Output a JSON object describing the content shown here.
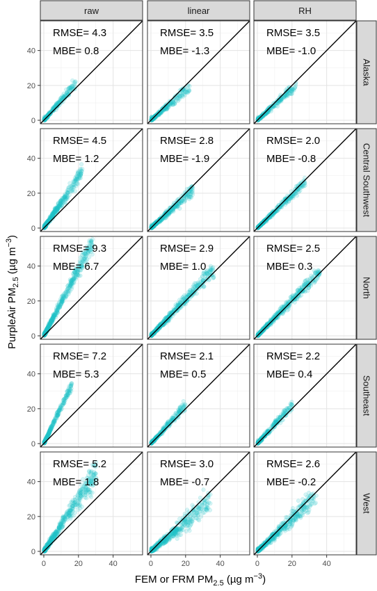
{
  "chart_data": {
    "type": "scatter",
    "panel_columns": [
      "raw",
      "linear",
      "RH"
    ],
    "panel_rows": [
      "Alaska",
      "Central Southwest",
      "North",
      "Southeast",
      "West"
    ],
    "xlabel": "FEM or FRM PM2.5 (µg m−3)",
    "ylabel": "PurpleAir PM2.5 (µg m−3)",
    "xlabel_parts": {
      "pre": "FEM or FRM PM",
      "sub": "2.5",
      "mid": " (µg m",
      "sup": "−3",
      "post": ")"
    },
    "ylabel_parts": {
      "pre": "PurpleAir PM",
      "sub": "2.5",
      "mid": " (µg m",
      "sup": "−3",
      "post": ")"
    },
    "xlim": [
      -2,
      57
    ],
    "ylim": [
      -2,
      57
    ],
    "x_ticks": [
      0,
      20,
      40
    ],
    "x_tick_labels": [
      "0",
      "20",
      "40"
    ],
    "y_ticks": [
      0,
      20,
      40
    ],
    "y_tick_labels": [
      "0",
      "20",
      "40"
    ],
    "grid": true,
    "reference_line": "1:1",
    "point_color": "#1fc3c8",
    "metrics": [
      {
        "row": "Alaska",
        "col": "raw",
        "rmse": "RMSE= 4.3",
        "mbe": "MBE= 0.8",
        "slope": 1.15,
        "xmax": 18,
        "spread": 0.3
      },
      {
        "row": "Alaska",
        "col": "linear",
        "rmse": "RMSE= 3.5",
        "mbe": "MBE= -1.3",
        "slope": 0.85,
        "xmax": 22,
        "spread": 0.25
      },
      {
        "row": "Alaska",
        "col": "RH",
        "rmse": "RMSE= 3.5",
        "mbe": "MBE= -1.0",
        "slope": 0.9,
        "xmax": 22,
        "spread": 0.25
      },
      {
        "row": "Central Southwest",
        "col": "raw",
        "rmse": "RMSE= 4.5",
        "mbe": "MBE= 1.2",
        "slope": 1.45,
        "xmax": 22,
        "spread": 0.35
      },
      {
        "row": "Central Southwest",
        "col": "linear",
        "rmse": "RMSE= 2.8",
        "mbe": "MBE= -1.9",
        "slope": 0.9,
        "xmax": 24,
        "spread": 0.25
      },
      {
        "row": "Central Southwest",
        "col": "RH",
        "rmse": "RMSE= 2.0",
        "mbe": "MBE= -0.8",
        "slope": 0.95,
        "xmax": 28,
        "spread": 0.2
      },
      {
        "row": "North",
        "col": "raw",
        "rmse": "RMSE= 9.3",
        "mbe": "MBE= 6.7",
        "slope": 1.9,
        "xmax": 28,
        "spread": 0.35
      },
      {
        "row": "North",
        "col": "linear",
        "rmse": "RMSE= 2.9",
        "mbe": "MBE= 1.0",
        "slope": 1.05,
        "xmax": 36,
        "spread": 0.25
      },
      {
        "row": "North",
        "col": "RH",
        "rmse": "RMSE= 2.5",
        "mbe": "MBE= 0.3",
        "slope": 1.02,
        "xmax": 36,
        "spread": 0.22
      },
      {
        "row": "Southeast",
        "col": "raw",
        "rmse": "RMSE= 7.2",
        "mbe": "MBE= 5.3",
        "slope": 2.1,
        "xmax": 16,
        "spread": 0.25
      },
      {
        "row": "Southeast",
        "col": "linear",
        "rmse": "RMSE= 2.1",
        "mbe": "MBE= 0.5",
        "slope": 1.1,
        "xmax": 20,
        "spread": 0.25
      },
      {
        "row": "Southeast",
        "col": "RH",
        "rmse": "RMSE= 2.2",
        "mbe": "MBE= 0.4",
        "slope": 1.1,
        "xmax": 20,
        "spread": 0.25
      },
      {
        "row": "West",
        "col": "raw",
        "rmse": "RMSE= 5.2",
        "mbe": "MBE= 1.8",
        "slope": 1.5,
        "xmax": 30,
        "spread": 0.45
      },
      {
        "row": "West",
        "col": "linear",
        "rmse": "RMSE= 3.0",
        "mbe": "MBE= -0.7",
        "slope": 0.85,
        "xmax": 34,
        "spread": 0.4
      },
      {
        "row": "West",
        "col": "RH",
        "rmse": "RMSE= 2.6",
        "mbe": "MBE= -0.2",
        "slope": 0.95,
        "xmax": 34,
        "spread": 0.35
      }
    ]
  }
}
